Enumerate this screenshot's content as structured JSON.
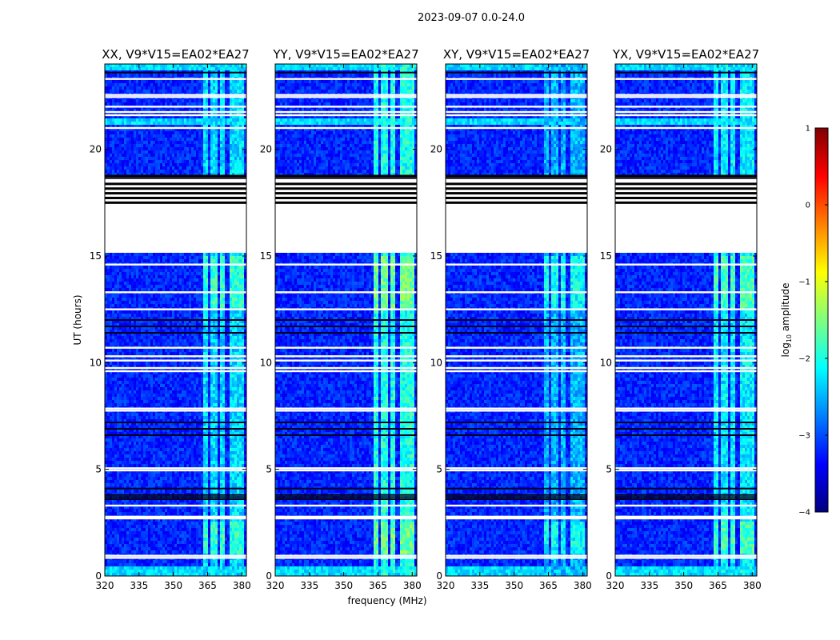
{
  "chart_data": {
    "type": "heatmap",
    "suptitle": "2023-09-07 0.0-24.0",
    "xlabel": "frequency (MHz)",
    "ylabel": "UT (hours)",
    "xlim": [
      320,
      382
    ],
    "ylim": [
      0,
      24
    ],
    "xticks": [
      "320",
      "335",
      "350",
      "365",
      "380"
    ],
    "xtick_values": [
      320,
      335,
      350,
      365,
      380
    ],
    "yticks": [
      "0",
      "5",
      "10",
      "15",
      "20"
    ],
    "ytick_values": [
      0,
      5,
      10,
      15,
      20
    ],
    "colorbar": {
      "label_prefix": "log",
      "label_sub": "10",
      "label_suffix": " amplitude",
      "range": [
        -4,
        1
      ],
      "ticks": [
        "1",
        "0",
        "−1",
        "−2",
        "−3",
        "−4"
      ],
      "tick_values": [
        1,
        0,
        -1,
        -2,
        -3,
        -4
      ],
      "colormap": "jet",
      "cmap_stops": [
        "#00007f",
        "#0000ff",
        "#007fff",
        "#00ffff",
        "#7fff7f",
        "#ffff00",
        "#ff7f00",
        "#ff0000",
        "#7f0000"
      ]
    },
    "panels": [
      {
        "title": "XX, V9*V15=EA02*EA27",
        "ridge": -2.3
      },
      {
        "title": "YY, V9*V15=EA02*EA27",
        "ridge": -2.0
      },
      {
        "title": "XY, V9*V15=EA02*EA27",
        "ridge": -2.5
      },
      {
        "title": "YX, V9*V15=EA02*EA27",
        "ridge": -2.2
      }
    ],
    "background_level": -3.2,
    "rfi_bands_mhz": [
      [
        363,
        365
      ],
      [
        366,
        369
      ],
      [
        370,
        373
      ],
      [
        374.5,
        377.5
      ],
      [
        378,
        381
      ]
    ],
    "flagged_time_ranges_hours": [
      [
        17.4,
        18.7
      ],
      [
        15.1,
        17.4
      ]
    ],
    "flagged_lines_hours": [
      0.85,
      0.95,
      2.7,
      2.78,
      3.3,
      4.95,
      5.05,
      7.75,
      7.85,
      9.6,
      9.75,
      10.1,
      10.3,
      10.7,
      12.5,
      13.3,
      14.6,
      21.0,
      21.6,
      21.75,
      22.0,
      22.45,
      22.55,
      23.3
    ],
    "dark_lines_hours": [
      3.6,
      3.7,
      3.8,
      4.1,
      6.6,
      6.9,
      7.2,
      11.4,
      11.7,
      12.0,
      18.65,
      23.6
    ],
    "bright_time_ranges_hours": [
      [
        0.0,
        0.5
      ],
      [
        21.2,
        21.5
      ],
      [
        23.7,
        24.0
      ]
    ]
  }
}
